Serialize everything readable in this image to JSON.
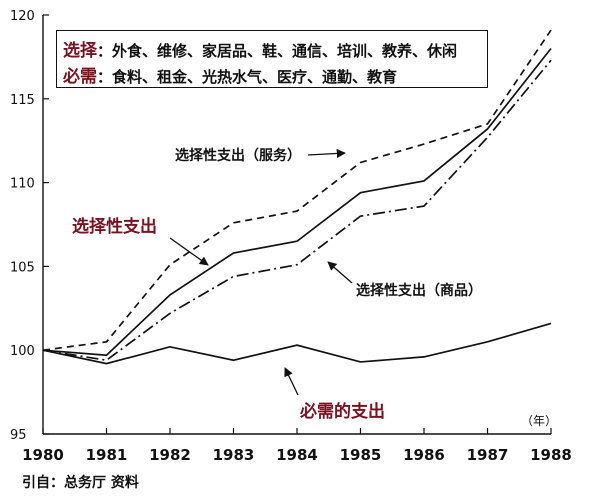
{
  "legend": {
    "row1_key": "选择",
    "row1_text": "：外食、维修、家居品、鞋、通信、培训、教养、休闲",
    "row2_key": "必需",
    "row2_text": "：食料、租金、光热水气、医疗、通勤、教育"
  },
  "source": "引自：总务厅 资料",
  "unit_label": "（年）",
  "colors": {
    "text": "#111111",
    "accent": "#7a1020",
    "line": "#111111"
  },
  "chart_data": {
    "type": "line",
    "x": [
      "1980",
      "1981",
      "1982",
      "1983",
      "1984",
      "1985",
      "1986",
      "1987",
      "1988"
    ],
    "ylim": [
      95,
      120
    ],
    "yticks": [
      95,
      100,
      105,
      110,
      115,
      120
    ],
    "grid": false,
    "series": [
      {
        "name": "选择性支出（服务）",
        "style": "dashed",
        "values": [
          100,
          100.5,
          105.1,
          107.6,
          108.3,
          111.2,
          112.3,
          113.5,
          119.1
        ]
      },
      {
        "name": "选择性支出",
        "style": "solid",
        "values": [
          100,
          99.7,
          103.3,
          105.8,
          106.5,
          109.4,
          110.1,
          113.2,
          118.0
        ]
      },
      {
        "name": "选择性支出（商品）",
        "style": "dashdot",
        "values": [
          100,
          99.4,
          102.2,
          104.4,
          105.1,
          108.0,
          108.6,
          112.7,
          117.3
        ]
      },
      {
        "name": "必需的支出",
        "style": "solid",
        "values": [
          100,
          99.2,
          100.2,
          99.4,
          100.3,
          99.3,
          99.6,
          100.5,
          101.6
        ]
      }
    ],
    "annotations": [
      {
        "text": "选择性支出（服务）",
        "series": 0
      },
      {
        "text": "选择性支出",
        "series": 1
      },
      {
        "text": "选择性支出（商品）",
        "series": 2
      },
      {
        "text": "必需的支出",
        "series": 3
      }
    ]
  }
}
